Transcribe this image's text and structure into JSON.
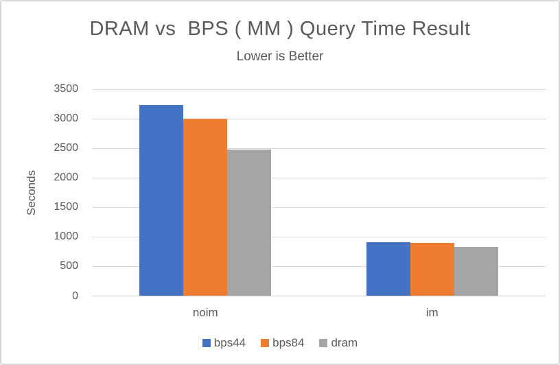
{
  "chart_data": {
    "type": "bar",
    "title": "DRAM vs  BPS ( MM ) Query Time Result",
    "subtitle": "Lower is Better",
    "ylabel": "Seconds",
    "xlabel": "",
    "categories": [
      "noim",
      "im"
    ],
    "series": [
      {
        "name": "bps44",
        "color": "#4472C4",
        "values": [
          3230,
          910
        ]
      },
      {
        "name": "bps84",
        "color": "#ED7D31",
        "values": [
          3000,
          900
        ]
      },
      {
        "name": "dram",
        "color": "#A5A5A5",
        "values": [
          2480,
          830
        ]
      }
    ],
    "ylim": [
      0,
      3500
    ],
    "yticks": [
      0,
      500,
      1000,
      1500,
      2000,
      2500,
      3000,
      3500
    ],
    "grid": true,
    "legend_position": "bottom"
  },
  "colors": {
    "frame_border": "#d8d8d8",
    "gridline": "#d9d9d9",
    "axis_text": "#595959",
    "title_text": "#595959"
  }
}
